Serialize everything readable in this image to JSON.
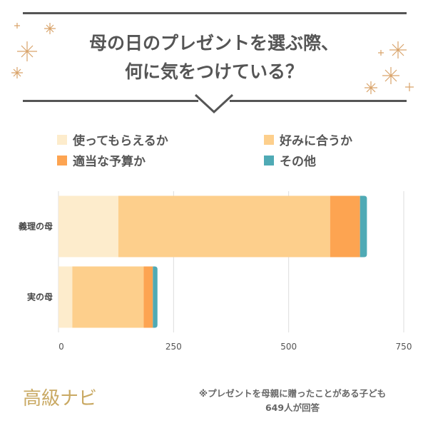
{
  "title": {
    "line1": "母の日のプレゼントを選ぶ際、",
    "line2": "何に気をつけている？"
  },
  "legend": [
    {
      "label": "使ってもらえるか",
      "color": "#fdeccc"
    },
    {
      "label": "好みに合うか",
      "color": "#fdcf8c"
    },
    {
      "label": "適当な予算か",
      "color": "#fda451"
    },
    {
      "label": "その他",
      "color": "#4faab5"
    }
  ],
  "chart_data": {
    "type": "bar",
    "orientation": "horizontal",
    "stacked": true,
    "categories": [
      "義理の母",
      "実の母"
    ],
    "series": [
      {
        "name": "使ってもらえるか",
        "values": [
          130,
          30
        ],
        "color": "#fdeccc"
      },
      {
        "name": "好みに合うか",
        "values": [
          460,
          155
        ],
        "color": "#fdcf8c"
      },
      {
        "name": "適当な予算か",
        "values": [
          65,
          20
        ],
        "color": "#fda451"
      },
      {
        "name": "その他",
        "values": [
          15,
          10
        ],
        "color": "#4faab5"
      }
    ],
    "xlim": [
      0,
      750
    ],
    "xticks": [
      0,
      250,
      500,
      750
    ],
    "grid": true
  },
  "brand": "高級ナビ",
  "note": {
    "line1": "※プレゼントを母親に贈ったことがある子ども",
    "line2": "649人が回答"
  }
}
